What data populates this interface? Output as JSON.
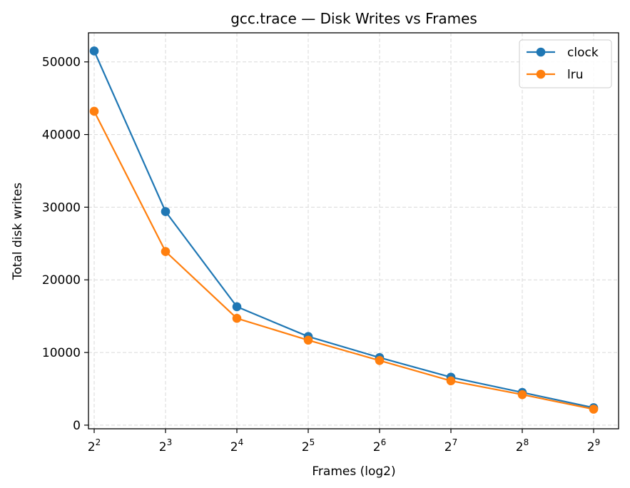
{
  "chart_data": {
    "type": "line",
    "title": "gcc.trace — Disk Writes vs Frames",
    "xlabel": "Frames (log2)",
    "ylabel": "Total disk writes",
    "x_exponents": [
      2,
      3,
      4,
      5,
      6,
      7,
      8,
      9
    ],
    "x_tick_base": "2",
    "x_tick_exponents": [
      "2",
      "3",
      "4",
      "5",
      "6",
      "7",
      "8",
      "9"
    ],
    "y_ticks": [
      0,
      10000,
      20000,
      30000,
      40000,
      50000
    ],
    "y_tick_labels": [
      "0",
      "10000",
      "20000",
      "30000",
      "40000",
      "50000"
    ],
    "ylim": [
      -500,
      54000
    ],
    "xlim": [
      1.92,
      9.35
    ],
    "grid": true,
    "legend_position": "top-right",
    "series": [
      {
        "name": "clock",
        "color": "#1f77b4",
        "values": [
          51500,
          29400,
          16300,
          12200,
          9300,
          6600,
          4500,
          2400
        ]
      },
      {
        "name": "lru",
        "color": "#ff7f0e",
        "values": [
          43200,
          23900,
          14700,
          11700,
          8900,
          6100,
          4200,
          2200
        ]
      }
    ]
  }
}
